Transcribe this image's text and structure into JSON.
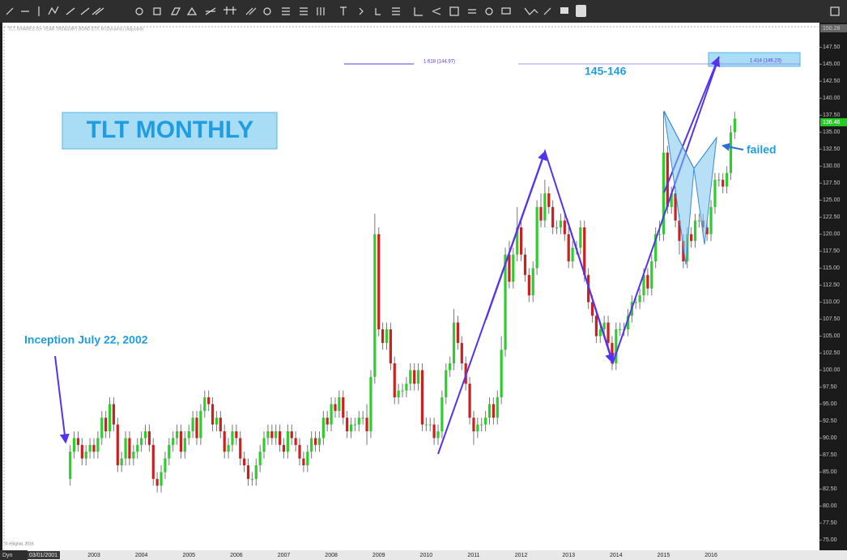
{
  "chart_data": {
    "type": "candlestick",
    "title": "TLT MONTHLY",
    "header": "TLT, ISHARES 20+ YEAR TREASURY BOND ETF, M (Dynamic) (Adjusted)",
    "annotations": {
      "inception": "Inception July 22, 2002",
      "target": "145-146",
      "failed": "failed",
      "fib_1618": "1.618 (144.97)",
      "fib_1414": "1.414 (146.23)"
    },
    "footer": {
      "mode": "Dyn",
      "date": "03/01/2001",
      "copyright": "© eSignal, 2016"
    },
    "last_price": 136.46,
    "axis_top_label": 150.28,
    "up_color": "#2ecc2e",
    "down_color": "#cc2020",
    "ylim": [
      73.5,
      150.28
    ],
    "yticks": [
      {
        "value": 75,
        "label": "75.00"
      },
      {
        "value": 77.5,
        "label": "77.50"
      },
      {
        "value": 80,
        "label": "80.00"
      },
      {
        "value": 82.5,
        "label": "82.50"
      },
      {
        "value": 85,
        "label": "85.00"
      },
      {
        "value": 87.5,
        "label": "87.50"
      },
      {
        "value": 90,
        "label": "90.00"
      },
      {
        "value": 92.5,
        "label": "92.50"
      },
      {
        "value": 95,
        "label": "95.00"
      },
      {
        "value": 97.5,
        "label": "97.50"
      },
      {
        "value": 100,
        "label": "100.00"
      },
      {
        "value": 102.5,
        "label": "102.50"
      },
      {
        "value": 105,
        "label": "105.00"
      },
      {
        "value": 107.5,
        "label": "107.50"
      },
      {
        "value": 110,
        "label": "110.00"
      },
      {
        "value": 112.5,
        "label": "112.50"
      },
      {
        "value": 115,
        "label": "115.00"
      },
      {
        "value": 117.5,
        "label": "117.50"
      },
      {
        "value": 120,
        "label": "120.00"
      },
      {
        "value": 122.5,
        "label": "122.50"
      },
      {
        "value": 125,
        "label": "125.00"
      },
      {
        "value": 127.5,
        "label": "127.50"
      },
      {
        "value": 130,
        "label": "130.00"
      },
      {
        "value": 132.5,
        "label": "132.50"
      },
      {
        "value": 135,
        "label": "135.00"
      },
      {
        "value": 137.5,
        "label": "137.50"
      },
      {
        "value": 140,
        "label": "140.00"
      },
      {
        "value": 142.5,
        "label": "142.50"
      },
      {
        "value": 145,
        "label": "145.00"
      },
      {
        "value": 147.5,
        "label": "147.50"
      }
    ],
    "categories": [
      null,
      null,
      null,
      null,
      null,
      null,
      "2003",
      null,
      null,
      null,
      null,
      null,
      null,
      null,
      null,
      null,
      null,
      null,
      "2004",
      null,
      null,
      null,
      null,
      null,
      null,
      null,
      null,
      null,
      null,
      null,
      "2005",
      null,
      null,
      null,
      null,
      null,
      null,
      null,
      null,
      null,
      null,
      null,
      "2006",
      null,
      null,
      null,
      null,
      null,
      null,
      null,
      null,
      null,
      null,
      null,
      "2007",
      null,
      null,
      null,
      null,
      null,
      null,
      null,
      null,
      null,
      null,
      null,
      "2008",
      null,
      null,
      null,
      null,
      null,
      null,
      null,
      null,
      null,
      null,
      null,
      "2009",
      null,
      null,
      null,
      null,
      null,
      null,
      null,
      null,
      null,
      null,
      null,
      "2010",
      null,
      null,
      null,
      null,
      null,
      null,
      null,
      null,
      null,
      null,
      null,
      "2011",
      null,
      null,
      null,
      null,
      null,
      null,
      null,
      null,
      null,
      null,
      null,
      "2012",
      null,
      null,
      null,
      null,
      null,
      null,
      null,
      null,
      null,
      null,
      null,
      "2013",
      null,
      null,
      null,
      null,
      null,
      null,
      null,
      null,
      null,
      null,
      null,
      "2014",
      null,
      null,
      null,
      null,
      null,
      null,
      null,
      null,
      null,
      null,
      null,
      "2015",
      null,
      null,
      null,
      null,
      null,
      null,
      null,
      null,
      null,
      null,
      null,
      "2016",
      null,
      null,
      null,
      null,
      null,
      null
    ],
    "open": [
      84,
      88,
      90,
      89,
      87,
      88,
      89,
      88,
      90,
      93,
      91,
      95,
      92,
      86,
      87,
      90,
      87,
      88,
      89,
      90,
      91,
      89,
      84,
      83,
      85,
      87,
      89,
      90,
      91,
      88,
      90,
      91,
      93,
      90,
      94,
      96,
      95,
      92,
      93,
      91,
      88,
      89,
      91,
      90,
      87,
      86,
      84,
      84,
      86,
      88,
      90,
      91,
      90,
      91,
      89,
      88,
      91,
      90,
      89,
      87,
      86,
      88,
      90,
      89,
      90,
      93,
      92,
      95,
      94,
      96,
      93,
      91,
      92,
      92,
      93,
      93,
      91,
      99,
      120,
      106,
      104,
      106,
      101,
      96,
      97,
      97,
      98,
      100,
      98,
      100,
      92,
      92,
      92,
      90,
      91,
      96,
      100,
      101,
      107,
      104,
      101,
      98,
      93,
      91,
      92,
      92,
      93,
      95,
      93,
      96,
      103,
      117,
      113,
      117,
      121,
      117,
      114,
      111,
      115,
      124,
      122,
      126,
      124,
      121,
      121,
      122,
      120,
      116,
      118,
      118,
      121,
      114,
      110,
      108,
      105,
      106,
      107,
      104,
      101,
      106,
      106,
      106,
      108,
      110,
      110,
      111,
      114,
      112,
      116,
      120,
      120,
      132,
      124,
      126,
      122,
      119,
      116,
      120,
      119,
      122,
      122,
      121,
      120,
      124,
      128,
      128,
      127,
      129,
      135
    ],
    "high": [
      89,
      91,
      91,
      90,
      89,
      90,
      90,
      91,
      94,
      94,
      96,
      96,
      93,
      88,
      91,
      91,
      89,
      90,
      91,
      92,
      92,
      90,
      85,
      86,
      88,
      90,
      91,
      92,
      92,
      91,
      92,
      94,
      94,
      95,
      97,
      97,
      96,
      94,
      94,
      92,
      90,
      92,
      92,
      91,
      88,
      87,
      85,
      87,
      89,
      91,
      92,
      92,
      92,
      92,
      90,
      92,
      92,
      91,
      90,
      88,
      89,
      91,
      91,
      91,
      94,
      94,
      96,
      96,
      97,
      97,
      94,
      93,
      93,
      94,
      94,
      95,
      100,
      123,
      121,
      107,
      107,
      107,
      102,
      98,
      98,
      99,
      101,
      101,
      101,
      101,
      93,
      93,
      93,
      92,
      97,
      101,
      102,
      109,
      108,
      105,
      102,
      99,
      94,
      93,
      93,
      94,
      96,
      96,
      97,
      105,
      118,
      119,
      118,
      124,
      122,
      118,
      115,
      116,
      125,
      126,
      128,
      127,
      125,
      122,
      123,
      123,
      121,
      119,
      119,
      122,
      122,
      115,
      111,
      109,
      107,
      108,
      108,
      105,
      107,
      107,
      107,
      109,
      111,
      111,
      112,
      115,
      115,
      117,
      121,
      122,
      138,
      133,
      127,
      127,
      123,
      120,
      121,
      121,
      123,
      123,
      123,
      122,
      125,
      129,
      129,
      129,
      130,
      136,
      138
    ],
    "low": [
      83,
      87,
      88,
      86,
      86,
      87,
      87,
      87,
      89,
      90,
      90,
      91,
      85,
      85,
      86,
      86,
      86,
      87,
      88,
      89,
      88,
      83,
      82,
      82,
      84,
      86,
      88,
      89,
      87,
      87,
      89,
      90,
      89,
      89,
      93,
      94,
      91,
      91,
      90,
      87,
      87,
      88,
      89,
      86,
      85,
      83,
      83,
      83,
      85,
      87,
      89,
      89,
      89,
      88,
      87,
      87,
      89,
      88,
      86,
      85,
      85,
      87,
      88,
      88,
      89,
      91,
      91,
      93,
      93,
      92,
      90,
      90,
      91,
      91,
      92,
      89,
      90,
      98,
      105,
      103,
      103,
      100,
      95,
      95,
      96,
      96,
      97,
      97,
      97,
      91,
      91,
      91,
      89,
      89,
      90,
      95,
      99,
      100,
      103,
      100,
      97,
      92,
      89,
      90,
      91,
      91,
      92,
      92,
      92,
      95,
      102,
      112,
      112,
      116,
      116,
      113,
      110,
      110,
      114,
      121,
      121,
      123,
      120,
      120,
      120,
      119,
      115,
      115,
      117,
      117,
      113,
      109,
      107,
      104,
      104,
      105,
      103,
      100,
      100,
      105,
      105,
      105,
      107,
      109,
      109,
      110,
      111,
      111,
      115,
      119,
      119,
      123,
      123,
      121,
      117,
      115,
      115,
      118,
      118,
      121,
      120,
      119,
      119,
      123,
      127,
      126,
      126,
      128,
      134
    ],
    "close": [
      88,
      90,
      89,
      87,
      88,
      89,
      88,
      90,
      93,
      91,
      95,
      92,
      86,
      87,
      90,
      87,
      88,
      89,
      90,
      91,
      89,
      84,
      83,
      85,
      87,
      89,
      90,
      91,
      88,
      90,
      91,
      93,
      90,
      94,
      96,
      95,
      92,
      93,
      91,
      88,
      89,
      91,
      90,
      87,
      86,
      84,
      84,
      86,
      88,
      90,
      91,
      90,
      91,
      89,
      88,
      91,
      90,
      89,
      87,
      86,
      88,
      90,
      89,
      90,
      93,
      92,
      95,
      94,
      96,
      93,
      91,
      92,
      92,
      93,
      93,
      91,
      99,
      120,
      106,
      104,
      106,
      101,
      96,
      97,
      97,
      98,
      100,
      98,
      100,
      92,
      92,
      92,
      90,
      91,
      96,
      100,
      101,
      107,
      104,
      101,
      98,
      93,
      91,
      92,
      92,
      93,
      95,
      93,
      96,
      103,
      117,
      113,
      117,
      121,
      117,
      114,
      111,
      115,
      124,
      122,
      126,
      124,
      121,
      121,
      122,
      120,
      116,
      118,
      118,
      121,
      114,
      110,
      108,
      105,
      106,
      107,
      104,
      101,
      106,
      106,
      106,
      108,
      110,
      110,
      111,
      114,
      112,
      116,
      120,
      120,
      132,
      124,
      126,
      122,
      119,
      116,
      120,
      119,
      122,
      122,
      121,
      120,
      124,
      128,
      128,
      127,
      129,
      135,
      137
    ]
  }
}
